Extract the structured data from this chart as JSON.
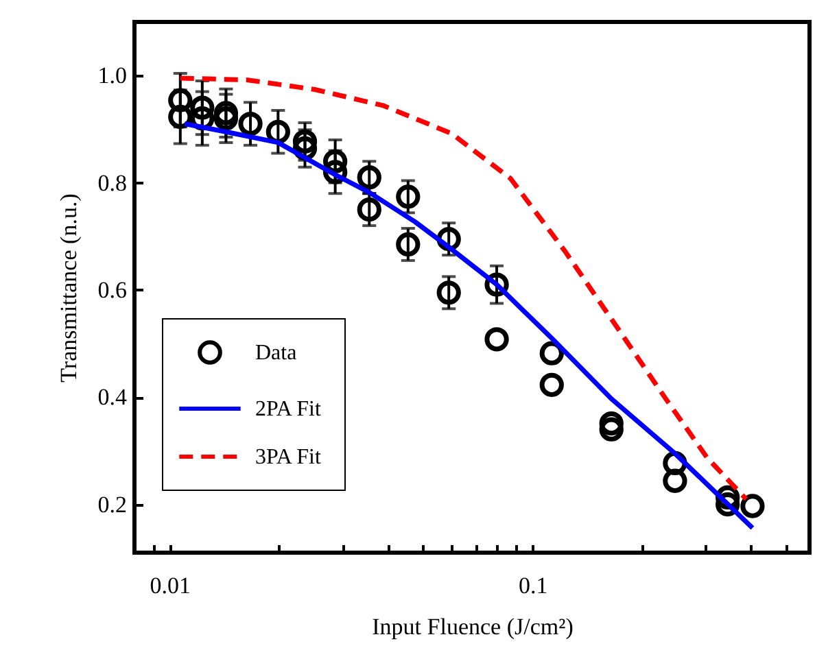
{
  "chart_data": {
    "type": "scatter",
    "xlabel": "Input Fluence (J/cm²)",
    "ylabel": "Transmittance (n.u.)",
    "log": "x",
    "xlim": [
      0.008,
      0.58
    ],
    "ylim": [
      0.11,
      1.1
    ],
    "xticks": [
      {
        "value": 0.009,
        "label": null
      },
      0.01,
      {
        "value": 0.02,
        "label": null
      },
      {
        "value": 0.03,
        "label": null
      },
      {
        "value": 0.04,
        "label": null
      },
      {
        "value": 0.05,
        "label": null
      },
      {
        "value": 0.06,
        "label": null
      },
      {
        "value": 0.07,
        "label": null
      },
      {
        "value": 0.08,
        "label": null
      },
      {
        "value": 0.09,
        "label": null
      },
      0.1,
      {
        "value": 0.2,
        "label": null
      },
      {
        "value": 0.3,
        "label": null
      },
      {
        "value": 0.4,
        "label": null
      },
      {
        "value": 0.5,
        "label": null
      }
    ],
    "yticks": [
      {
        "value": 0.2,
        "label": "0.2"
      },
      {
        "value": 0.4,
        "label": "0.4"
      },
      {
        "value": 0.6,
        "label": "0.6"
      },
      {
        "value": 0.8,
        "label": "0.8"
      },
      {
        "value": 1.0,
        "label": "1.0"
      }
    ],
    "grid": false,
    "legend": "left",
    "series": [
      {
        "name": "Data",
        "marker": "circle",
        "color": "#000000",
        "x": [
          0.0107,
          0.0107,
          0.0123,
          0.0123,
          0.0143,
          0.0143,
          0.0167,
          0.0199,
          0.0236,
          0.0236,
          0.0286,
          0.0286,
          0.0355,
          0.0355,
          0.0454,
          0.0454,
          0.0588,
          0.0588,
          0.0797,
          0.0797,
          0.113,
          0.113,
          0.165,
          0.165,
          0.247,
          0.247,
          0.345,
          0.345,
          0.404
        ],
        "values": [
          0.954,
          0.923,
          0.94,
          0.92,
          0.93,
          0.92,
          0.91,
          0.895,
          0.877,
          0.864,
          0.84,
          0.82,
          0.81,
          0.75,
          0.774,
          0.685,
          0.695,
          0.595,
          0.61,
          0.508,
          0.482,
          0.423,
          0.351,
          0.34,
          0.277,
          0.244,
          0.213,
          0.2,
          0.197
        ],
        "errors": [
          0.05,
          0.05,
          0.05,
          0.05,
          0.045,
          0.045,
          0.04,
          0.04,
          0.035,
          0.035,
          0.04,
          0.04,
          0.03,
          0.03,
          0.03,
          0.03,
          0.03,
          0.03,
          0.035,
          null,
          null,
          null,
          null,
          null,
          null,
          null,
          null,
          null,
          null
        ]
      },
      {
        "name": "2PA Fit",
        "type": "line",
        "line_style": "solid",
        "color": "#0000ff",
        "x": [
          0.011,
          0.0143,
          0.0199,
          0.0286,
          0.0355,
          0.0475,
          0.0588,
          0.0797,
          0.113,
          0.165,
          0.247,
          0.404
        ],
        "values": [
          0.91,
          0.895,
          0.875,
          0.815,
          0.782,
          0.727,
          0.68,
          0.61,
          0.51,
          0.397,
          0.295,
          0.156
        ]
      },
      {
        "name": "3PA Fit",
        "type": "line",
        "line_style": "dashed",
        "color": "#ff0000",
        "x": [
          0.0107,
          0.0163,
          0.0251,
          0.0388,
          0.0598,
          0.087,
          0.123,
          0.17,
          0.233,
          0.303,
          0.388
        ],
        "values": [
          0.995,
          0.992,
          0.974,
          0.944,
          0.892,
          0.808,
          0.672,
          0.533,
          0.397,
          0.287,
          0.21
        ]
      }
    ]
  }
}
